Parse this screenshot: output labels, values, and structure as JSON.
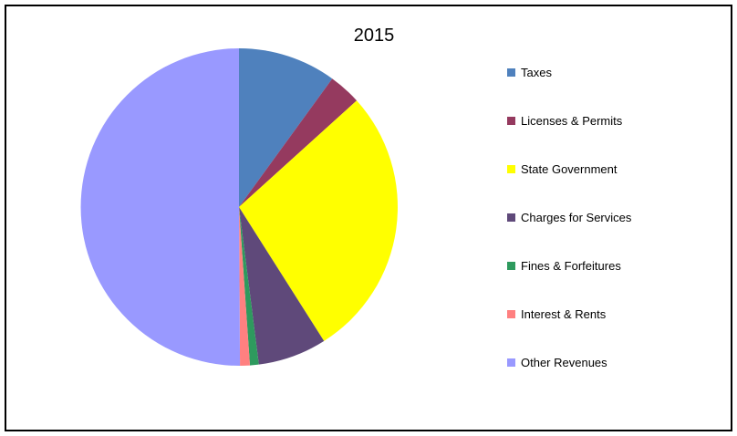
{
  "chart_data": {
    "type": "pie",
    "title": "2015",
    "start_angle_deg": 0,
    "direction": "clockwise",
    "legend_position": "right",
    "slices": [
      {
        "label": "Taxes",
        "value": 10.0,
        "color": "#4F81BD"
      },
      {
        "label": "Licenses & Permits",
        "value": 3.3,
        "color": "#953A5F"
      },
      {
        "label": "State Government",
        "value": 27.7,
        "color": "#FFFF00"
      },
      {
        "label": "Charges for Services",
        "value": 7.0,
        "color": "#5F497A"
      },
      {
        "label": "Fines & Forfeitures",
        "value": 0.9,
        "color": "#2E9A5E"
      },
      {
        "label": "Interest & Rents",
        "value": 1.0,
        "color": "#FF8080"
      },
      {
        "label": "Other Revenues",
        "value": 50.1,
        "color": "#9999FF"
      }
    ]
  }
}
